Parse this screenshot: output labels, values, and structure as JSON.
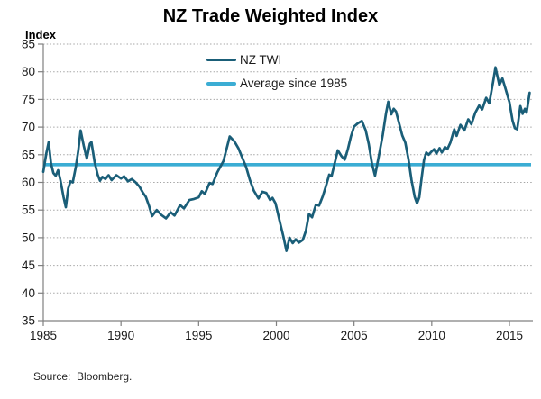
{
  "title": "NZ Trade Weighted Index",
  "y_axis_label": "Index",
  "source": "Source:  Bloomberg.",
  "legend": [
    {
      "label": "NZ TWI",
      "color": "#1a5e78"
    },
    {
      "label": "Average since 1985",
      "color": "#3badd4"
    }
  ],
  "colors": {
    "series_line": "#1a5e78",
    "average_line": "#3badd4",
    "axis": "#808080",
    "gridline": "#a6a6a6",
    "text": "#1a1a1a"
  },
  "chart_data": {
    "type": "line",
    "title": "NZ Trade Weighted Index",
    "xlabel": "",
    "ylabel": "Index",
    "ylim": [
      35,
      85
    ],
    "xlim": [
      1985,
      2016.5
    ],
    "y_ticks": [
      85,
      80,
      75,
      70,
      65,
      60,
      55,
      50,
      45,
      40,
      35
    ],
    "x_ticks": [
      1985,
      1990,
      1995,
      2000,
      2005,
      2010,
      2015
    ],
    "grid": "horizontal dotted lines at every y tick",
    "legend_position": "top-center inside plot",
    "source": "Source:  Bloomberg.",
    "series": [
      {
        "name": "NZ TWI",
        "color": "#1a5e78",
        "points": [
          [
            1985.0,
            61.9
          ],
          [
            1985.2,
            65.3
          ],
          [
            1985.35,
            67.3
          ],
          [
            1985.5,
            63.4
          ],
          [
            1985.65,
            61.7
          ],
          [
            1985.8,
            61.2
          ],
          [
            1985.95,
            62.2
          ],
          [
            1986.1,
            60.4
          ],
          [
            1986.3,
            57.4
          ],
          [
            1986.45,
            55.5
          ],
          [
            1986.6,
            58.9
          ],
          [
            1986.75,
            60.2
          ],
          [
            1986.9,
            60.0
          ],
          [
            1987.1,
            62.9
          ],
          [
            1987.25,
            65.7
          ],
          [
            1987.4,
            69.4
          ],
          [
            1987.6,
            66.7
          ],
          [
            1987.8,
            64.3
          ],
          [
            1988.0,
            67.0
          ],
          [
            1988.1,
            67.3
          ],
          [
            1988.3,
            63.7
          ],
          [
            1988.5,
            61.4
          ],
          [
            1988.65,
            60.3
          ],
          [
            1988.8,
            61.0
          ],
          [
            1989.0,
            60.6
          ],
          [
            1989.2,
            61.3
          ],
          [
            1989.4,
            60.4
          ],
          [
            1989.7,
            61.3
          ],
          [
            1990.0,
            60.7
          ],
          [
            1990.2,
            61.1
          ],
          [
            1990.45,
            60.2
          ],
          [
            1990.7,
            60.6
          ],
          [
            1990.95,
            60.0
          ],
          [
            1991.2,
            59.2
          ],
          [
            1991.4,
            58.2
          ],
          [
            1991.6,
            57.4
          ],
          [
            1991.8,
            55.8
          ],
          [
            1992.0,
            53.9
          ],
          [
            1992.3,
            55.0
          ],
          [
            1992.6,
            54.1
          ],
          [
            1992.9,
            53.5
          ],
          [
            1993.2,
            54.6
          ],
          [
            1993.45,
            54.0
          ],
          [
            1993.8,
            55.9
          ],
          [
            1994.05,
            55.3
          ],
          [
            1994.4,
            56.8
          ],
          [
            1994.7,
            57.0
          ],
          [
            1995.0,
            57.3
          ],
          [
            1995.2,
            58.4
          ],
          [
            1995.4,
            57.9
          ],
          [
            1995.7,
            59.9
          ],
          [
            1995.9,
            59.7
          ],
          [
            1996.2,
            61.8
          ],
          [
            1996.6,
            63.9
          ],
          [
            1997.0,
            68.3
          ],
          [
            1997.3,
            67.4
          ],
          [
            1997.55,
            66.2
          ],
          [
            1997.8,
            64.5
          ],
          [
            1998.05,
            62.8
          ],
          [
            1998.3,
            60.4
          ],
          [
            1998.55,
            58.5
          ],
          [
            1998.85,
            57.1
          ],
          [
            1999.1,
            58.3
          ],
          [
            1999.35,
            58.1
          ],
          [
            1999.6,
            56.8
          ],
          [
            1999.75,
            57.2
          ],
          [
            1999.95,
            56.2
          ],
          [
            2000.2,
            53.2
          ],
          [
            2000.45,
            50.2
          ],
          [
            2000.65,
            47.6
          ],
          [
            2000.85,
            50.0
          ],
          [
            2001.05,
            49.0
          ],
          [
            2001.25,
            49.7
          ],
          [
            2001.45,
            49.1
          ],
          [
            2001.7,
            49.6
          ],
          [
            2001.9,
            51.2
          ],
          [
            2002.1,
            54.3
          ],
          [
            2002.3,
            53.7
          ],
          [
            2002.55,
            56.0
          ],
          [
            2002.75,
            55.8
          ],
          [
            2003.0,
            57.6
          ],
          [
            2003.2,
            59.4
          ],
          [
            2003.4,
            61.4
          ],
          [
            2003.55,
            61.1
          ],
          [
            2003.75,
            63.4
          ],
          [
            2003.95,
            65.8
          ],
          [
            2004.2,
            64.7
          ],
          [
            2004.4,
            64.1
          ],
          [
            2004.6,
            66.0
          ],
          [
            2004.8,
            68.3
          ],
          [
            2005.0,
            70.1
          ],
          [
            2005.25,
            70.7
          ],
          [
            2005.5,
            71.1
          ],
          [
            2005.75,
            69.4
          ],
          [
            2005.95,
            66.9
          ],
          [
            2006.15,
            63.4
          ],
          [
            2006.35,
            61.2
          ],
          [
            2006.6,
            64.8
          ],
          [
            2006.85,
            68.6
          ],
          [
            2007.05,
            72.4
          ],
          [
            2007.2,
            74.6
          ],
          [
            2007.4,
            72.3
          ],
          [
            2007.55,
            73.3
          ],
          [
            2007.7,
            72.8
          ],
          [
            2007.9,
            70.7
          ],
          [
            2008.1,
            68.5
          ],
          [
            2008.3,
            67.2
          ],
          [
            2008.5,
            64.2
          ],
          [
            2008.7,
            60.4
          ],
          [
            2008.9,
            57.4
          ],
          [
            2009.05,
            56.2
          ],
          [
            2009.2,
            57.3
          ],
          [
            2009.35,
            60.8
          ],
          [
            2009.5,
            64.0
          ],
          [
            2009.65,
            65.4
          ],
          [
            2009.8,
            65.0
          ],
          [
            2010.0,
            65.6
          ],
          [
            2010.15,
            66.0
          ],
          [
            2010.3,
            65.2
          ],
          [
            2010.5,
            66.2
          ],
          [
            2010.65,
            65.4
          ],
          [
            2010.85,
            66.4
          ],
          [
            2011.0,
            66.0
          ],
          [
            2011.2,
            67.2
          ],
          [
            2011.45,
            69.6
          ],
          [
            2011.6,
            68.4
          ],
          [
            2011.85,
            70.4
          ],
          [
            2012.1,
            69.4
          ],
          [
            2012.35,
            71.4
          ],
          [
            2012.55,
            70.5
          ],
          [
            2012.8,
            72.6
          ],
          [
            2013.05,
            73.9
          ],
          [
            2013.25,
            73.2
          ],
          [
            2013.5,
            75.3
          ],
          [
            2013.7,
            74.3
          ],
          [
            2013.95,
            78.2
          ],
          [
            2014.1,
            80.8
          ],
          [
            2014.35,
            77.6
          ],
          [
            2014.55,
            78.8
          ],
          [
            2014.75,
            76.9
          ],
          [
            2015.0,
            74.5
          ],
          [
            2015.2,
            71.2
          ],
          [
            2015.35,
            69.8
          ],
          [
            2015.5,
            69.6
          ],
          [
            2015.7,
            73.8
          ],
          [
            2015.85,
            72.4
          ],
          [
            2016.0,
            73.3
          ],
          [
            2016.1,
            72.6
          ],
          [
            2016.3,
            76.2
          ]
        ]
      },
      {
        "name": "Average since 1985",
        "color": "#3badd4",
        "style": "horizontal-constant",
        "value": 63.2
      }
    ]
  }
}
